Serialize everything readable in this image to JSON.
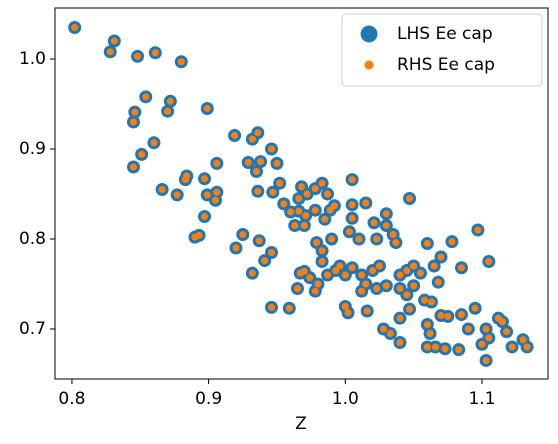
{
  "chart_data": {
    "type": "scatter",
    "x_label": "Z",
    "legend": "upper right",
    "xlim": [
      0.7876,
      1.1483
    ],
    "ylim": [
      0.6444,
      1.0567
    ],
    "xticks": [
      0.8,
      0.9,
      {
        "value": 1.0,
        "label": "1.0"
      },
      1.1
    ],
    "yticks": [
      0.7,
      0.8,
      0.9,
      {
        "value": 1.0,
        "label": "1.0"
      }
    ],
    "x": [
      0.802,
      0.828,
      0.831,
      0.848,
      0.861,
      0.88,
      0.845,
      0.846,
      0.854,
      0.87,
      0.872,
      0.899,
      0.845,
      0.851,
      0.86,
      0.866,
      0.877,
      0.883,
      0.884,
      0.897,
      0.899,
      0.906,
      0.905,
      0.906,
      0.897,
      0.89,
      0.893,
      0.919,
      0.932,
      0.936,
      0.929,
      0.938,
      0.946,
      0.95,
      0.935,
      0.936,
      0.947,
      0.952,
      0.955,
      0.96,
      0.966,
      0.968,
      0.972,
      0.978,
      0.983,
      0.987,
      0.992,
      1.005,
      1.005,
      1.015,
      1.005,
      1.021,
      1.03,
      1.03,
      1.047,
      0.966,
      0.971,
      0.978,
      0.985,
      0.989,
      0.963,
      0.97,
      0.925,
      0.92,
      0.937,
      0.946,
      0.941,
      0.932,
      0.979,
      0.983,
      0.99,
      0.983,
      1.003,
      1.01,
      1.023,
      1.035,
      1.037,
      0.967,
      0.97,
      0.974,
      0.98,
      0.987,
      0.993,
      0.996,
      1.0,
      1.005,
      1.012,
      1.015,
      1.02,
      1.025,
      1.023,
      1.03,
      1.04,
      1.045,
      1.05,
      1.055,
      1.06,
      1.065,
      1.07,
      1.078,
      1.085,
      1.097,
      1.105,
      0.965,
      0.978,
      1.012,
      1.04,
      1.045,
      1.05,
      1.058,
      1.063,
      1.068,
      0.946,
      0.959,
      1.0,
      1.002,
      1.016,
      1.028,
      1.033,
      1.04,
      1.04,
      1.047,
      1.06,
      1.062,
      1.06,
      1.066,
      1.07,
      1.075,
      1.073,
      1.085,
      1.083,
      1.09,
      1.095,
      1.103,
      1.105,
      1.103,
      1.112,
      1.115,
      1.118,
      1.122,
      1.13,
      1.133,
      1.1
    ],
    "series": [
      {
        "name": "LHS Ee cap",
        "color": "#1f77b4",
        "values": [
          1.035,
          1.008,
          1.02,
          1.003,
          1.007,
          0.997,
          0.93,
          0.941,
          0.958,
          0.942,
          0.953,
          0.945,
          0.88,
          0.894,
          0.907,
          0.855,
          0.849,
          0.866,
          0.87,
          0.867,
          0.849,
          0.852,
          0.843,
          0.884,
          0.825,
          0.802,
          0.804,
          0.915,
          0.911,
          0.918,
          0.885,
          0.886,
          0.9,
          0.884,
          0.875,
          0.853,
          0.852,
          0.862,
          0.839,
          0.83,
          0.845,
          0.858,
          0.85,
          0.856,
          0.862,
          0.85,
          0.837,
          0.866,
          0.838,
          0.84,
          0.823,
          0.818,
          0.828,
          0.815,
          0.845,
          0.831,
          0.826,
          0.832,
          0.822,
          0.832,
          0.815,
          0.815,
          0.805,
          0.79,
          0.798,
          0.785,
          0.776,
          0.762,
          0.796,
          0.787,
          0.8,
          0.775,
          0.808,
          0.8,
          0.8,
          0.805,
          0.796,
          0.762,
          0.764,
          0.757,
          0.75,
          0.76,
          0.765,
          0.77,
          0.76,
          0.768,
          0.76,
          0.75,
          0.765,
          0.77,
          0.745,
          0.748,
          0.76,
          0.765,
          0.77,
          0.762,
          0.795,
          0.77,
          0.78,
          0.797,
          0.768,
          0.81,
          0.775,
          0.745,
          0.742,
          0.742,
          0.745,
          0.738,
          0.748,
          0.732,
          0.73,
          0.752,
          0.724,
          0.723,
          0.725,
          0.718,
          0.72,
          0.7,
          0.695,
          0.712,
          0.685,
          0.722,
          0.705,
          0.695,
          0.68,
          0.68,
          0.715,
          0.714,
          0.678,
          0.716,
          0.677,
          0.7,
          0.723,
          0.7,
          0.69,
          0.665,
          0.712,
          0.708,
          0.697,
          0.68,
          0.688,
          0.68,
          0.683
        ]
      },
      {
        "name": "RHS Ee cap",
        "color": "#ff7f0e",
        "values": [
          1.035,
          1.008,
          1.02,
          1.003,
          1.007,
          0.997,
          0.93,
          0.941,
          0.958,
          0.942,
          0.953,
          0.945,
          0.88,
          0.894,
          0.907,
          0.855,
          0.849,
          0.866,
          0.87,
          0.867,
          0.849,
          0.852,
          0.843,
          0.884,
          0.825,
          0.802,
          0.804,
          0.915,
          0.911,
          0.918,
          0.885,
          0.886,
          0.9,
          0.884,
          0.875,
          0.853,
          0.852,
          0.862,
          0.839,
          0.83,
          0.845,
          0.858,
          0.85,
          0.856,
          0.862,
          0.85,
          0.837,
          0.866,
          0.838,
          0.84,
          0.823,
          0.818,
          0.828,
          0.815,
          0.845,
          0.831,
          0.826,
          0.832,
          0.822,
          0.832,
          0.815,
          0.815,
          0.805,
          0.79,
          0.798,
          0.785,
          0.776,
          0.762,
          0.796,
          0.787,
          0.8,
          0.775,
          0.808,
          0.8,
          0.8,
          0.805,
          0.796,
          0.762,
          0.764,
          0.757,
          0.75,
          0.76,
          0.765,
          0.77,
          0.76,
          0.768,
          0.76,
          0.75,
          0.765,
          0.77,
          0.745,
          0.748,
          0.76,
          0.765,
          0.77,
          0.762,
          0.795,
          0.77,
          0.78,
          0.797,
          0.768,
          0.81,
          0.775,
          0.745,
          0.742,
          0.742,
          0.745,
          0.738,
          0.748,
          0.732,
          0.73,
          0.752,
          0.724,
          0.723,
          0.725,
          0.718,
          0.72,
          0.7,
          0.695,
          0.712,
          0.685,
          0.722,
          0.705,
          0.695,
          0.68,
          0.68,
          0.715,
          0.714,
          0.678,
          0.716,
          0.677,
          0.7,
          0.723,
          0.7,
          0.69,
          0.665,
          0.712,
          0.708,
          0.697,
          0.68,
          0.688,
          0.68,
          0.683
        ]
      }
    ]
  }
}
